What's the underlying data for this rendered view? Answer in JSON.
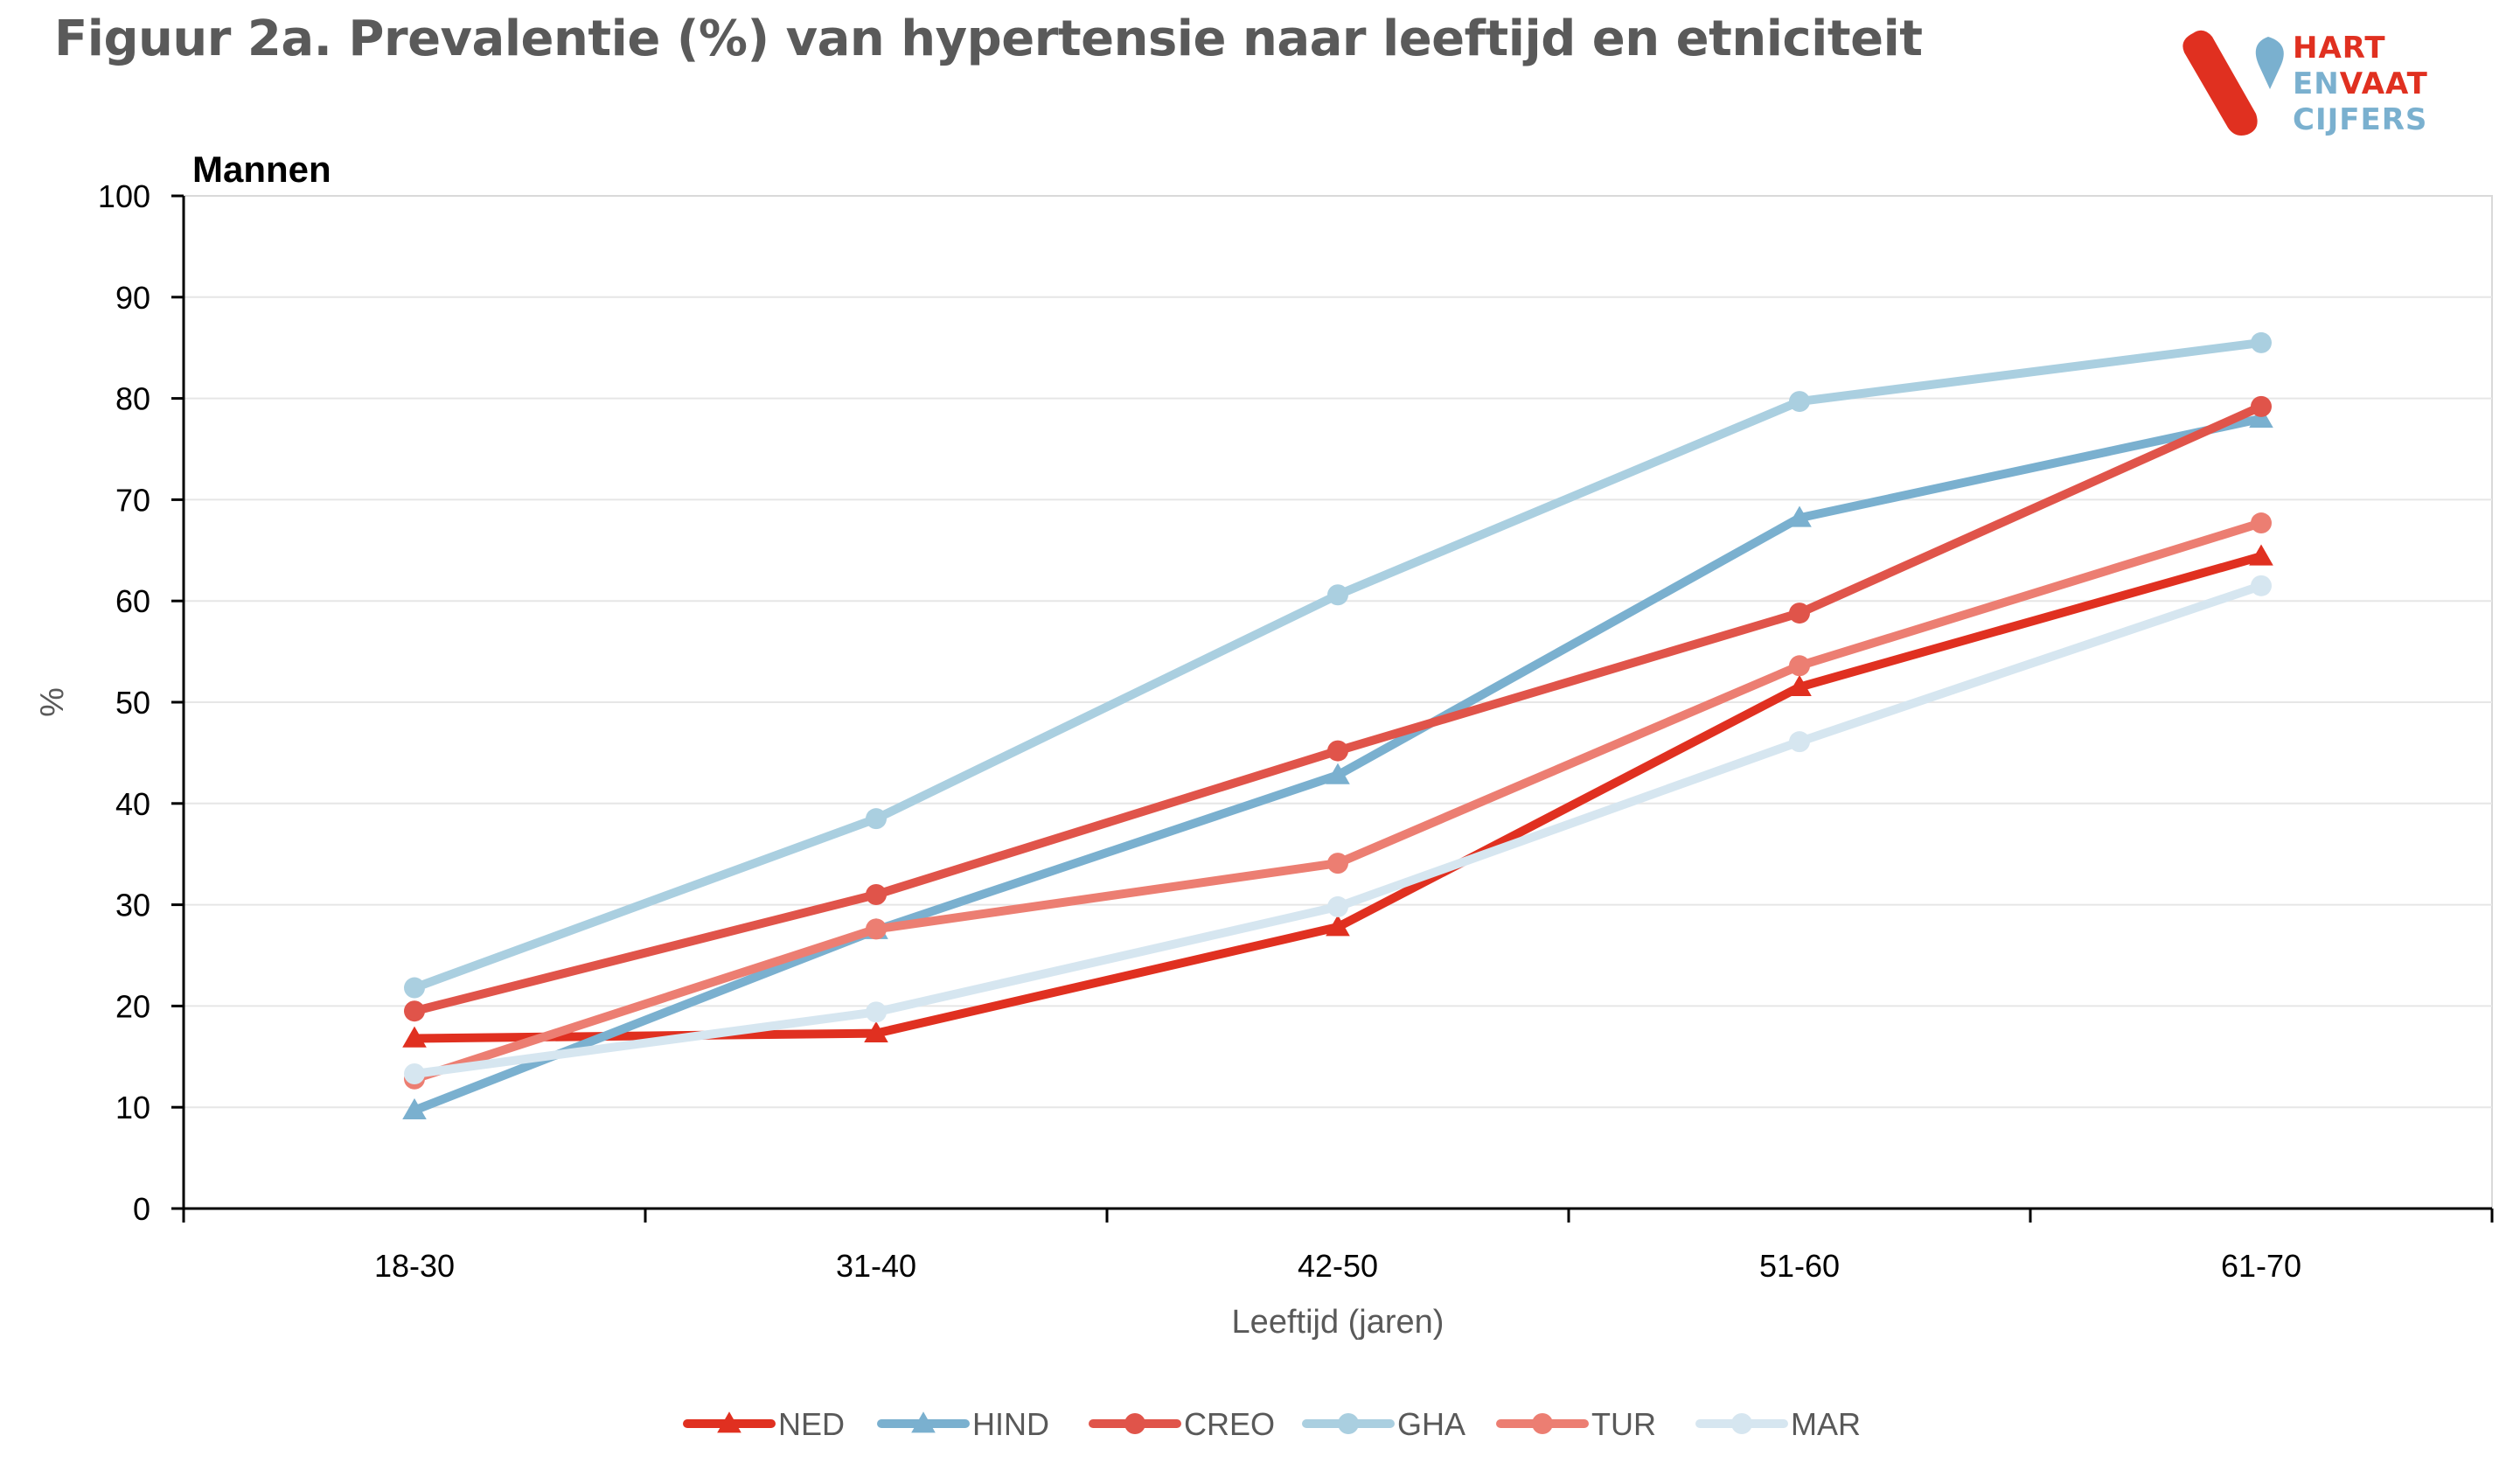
{
  "title": "Figuur 2a. Prevalentie (%) van hypertensie naar leeftijd en etniciteit",
  "logo": {
    "line1": "HART",
    "line2_a": "EN",
    "line2_b": "VAAT",
    "line3": "CIJFERS"
  },
  "chart_data": {
    "type": "line",
    "subtitle": "Mannen",
    "xlabel": "Leeftijd (jaren)",
    "ylabel": "%",
    "ylim": [
      0,
      100
    ],
    "yticks": [
      0,
      10,
      20,
      30,
      40,
      50,
      60,
      70,
      80,
      90,
      100
    ],
    "categories": [
      "18-30",
      "31-40",
      "42-50",
      "51-60",
      "61-70"
    ],
    "grid": true,
    "legend_position": "bottom",
    "series": [
      {
        "name": "NED",
        "color": "#e03020",
        "marker": "triangle",
        "values": [
          16.8,
          17.3,
          27.8,
          51.5,
          64.4
        ]
      },
      {
        "name": "HIND",
        "color": "#7ab0cf",
        "marker": "triangle",
        "values": [
          9.7,
          27.5,
          42.8,
          68.2,
          78.0
        ]
      },
      {
        "name": "CREO",
        "color": "#e0544a",
        "marker": "circle",
        "values": [
          19.5,
          31.0,
          45.2,
          58.8,
          79.2
        ]
      },
      {
        "name": "GHA",
        "color": "#aacfe0",
        "marker": "circle",
        "values": [
          21.8,
          38.5,
          60.6,
          79.7,
          85.5
        ]
      },
      {
        "name": "TUR",
        "color": "#ec7e72",
        "marker": "circle",
        "values": [
          12.8,
          27.6,
          34.1,
          53.6,
          67.7
        ]
      },
      {
        "name": "MAR",
        "color": "#d6e6f0",
        "marker": "circle",
        "values": [
          13.3,
          19.4,
          29.8,
          46.1,
          61.5
        ]
      }
    ]
  },
  "colors": {
    "logo_red": "#e03020",
    "logo_blue": "#7ab0cf",
    "title_grey": "#5a5a5a"
  }
}
